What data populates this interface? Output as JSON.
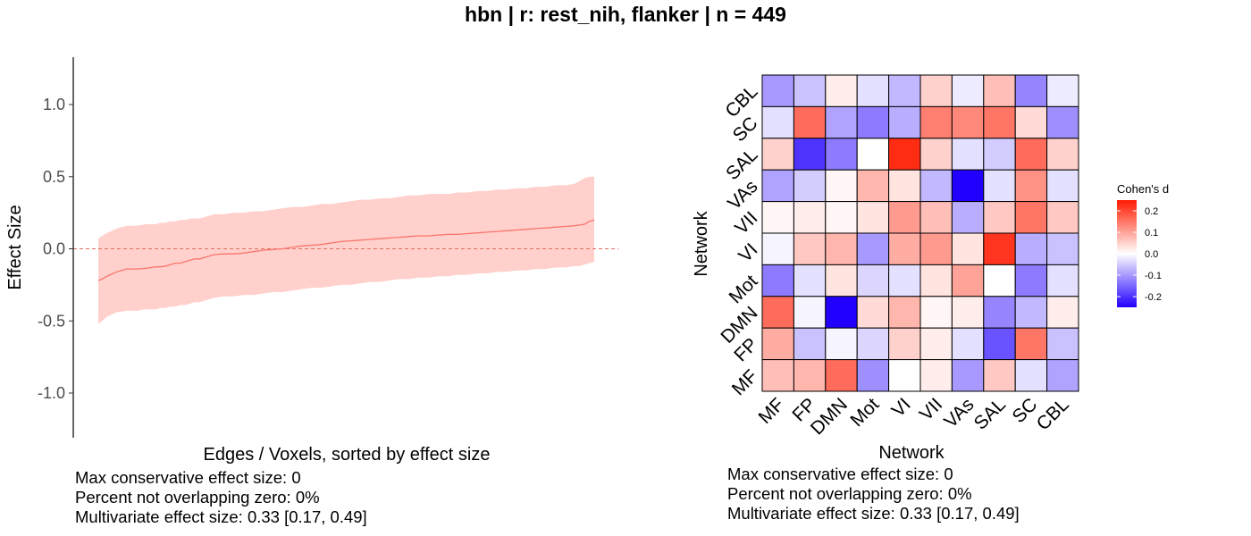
{
  "title": "hbn | r: rest_nih, flanker | n = 449",
  "chart_data": [
    {
      "type": "area",
      "title": "",
      "xlabel": "Edges / Voxels, sorted by effect size",
      "ylabel": "Effect Size",
      "ylim": [
        -1.3,
        1.3
      ],
      "yticks": [
        "1.0",
        "0.5",
        "0.0",
        "-0.5",
        "-1.0"
      ],
      "ytick_values": [
        1.0,
        0.5,
        0.0,
        -0.5,
        -1.0
      ],
      "reference_line": 0,
      "grid": false,
      "series": [
        {
          "x": [
            1,
            5,
            10,
            20,
            30,
            40,
            50,
            55,
            60,
            65,
            70,
            75,
            80,
            85,
            90,
            95,
            100,
            105,
            110,
            120,
            130,
            140,
            150,
            160,
            170,
            180,
            190,
            200,
            210,
            220,
            230,
            240,
            250,
            260,
            270,
            280,
            290,
            300,
            310,
            320,
            330,
            340,
            350,
            360,
            370,
            380,
            390,
            400,
            410,
            420,
            430,
            440,
            450,
            460,
            470,
            480,
            490,
            495,
            500,
            505,
            510
          ],
          "y": [
            -0.22,
            -0.21,
            -0.19,
            -0.16,
            -0.14,
            -0.14,
            -0.135,
            -0.13,
            -0.125,
            -0.125,
            -0.12,
            -0.11,
            -0.1,
            -0.1,
            -0.09,
            -0.08,
            -0.07,
            -0.07,
            -0.06,
            -0.04,
            -0.035,
            -0.035,
            -0.03,
            -0.02,
            -0.01,
            -0.005,
            0.0,
            0.01,
            0.02,
            0.025,
            0.03,
            0.04,
            0.05,
            0.055,
            0.06,
            0.065,
            0.07,
            0.075,
            0.08,
            0.085,
            0.09,
            0.09,
            0.095,
            0.1,
            0.1,
            0.105,
            0.11,
            0.115,
            0.12,
            0.125,
            0.13,
            0.135,
            0.14,
            0.145,
            0.15,
            0.155,
            0.16,
            0.165,
            0.17,
            0.19,
            0.2
          ],
          "lower": [
            -0.52,
            -0.5,
            -0.47,
            -0.44,
            -0.43,
            -0.43,
            -0.42,
            -0.42,
            -0.42,
            -0.41,
            -0.41,
            -0.4,
            -0.4,
            -0.39,
            -0.39,
            -0.38,
            -0.37,
            -0.37,
            -0.36,
            -0.34,
            -0.33,
            -0.33,
            -0.32,
            -0.32,
            -0.31,
            -0.3,
            -0.3,
            -0.29,
            -0.28,
            -0.27,
            -0.27,
            -0.26,
            -0.25,
            -0.25,
            -0.24,
            -0.23,
            -0.23,
            -0.22,
            -0.21,
            -0.21,
            -0.2,
            -0.2,
            -0.19,
            -0.19,
            -0.18,
            -0.18,
            -0.17,
            -0.17,
            -0.16,
            -0.16,
            -0.15,
            -0.15,
            -0.14,
            -0.14,
            -0.13,
            -0.13,
            -0.12,
            -0.12,
            -0.11,
            -0.1,
            -0.09
          ],
          "upper": [
            0.07,
            0.09,
            0.11,
            0.14,
            0.16,
            0.16,
            0.17,
            0.17,
            0.17,
            0.18,
            0.18,
            0.19,
            0.19,
            0.2,
            0.2,
            0.21,
            0.21,
            0.21,
            0.22,
            0.24,
            0.24,
            0.25,
            0.25,
            0.26,
            0.26,
            0.27,
            0.28,
            0.29,
            0.29,
            0.3,
            0.31,
            0.31,
            0.32,
            0.33,
            0.34,
            0.34,
            0.35,
            0.35,
            0.36,
            0.37,
            0.37,
            0.38,
            0.38,
            0.38,
            0.39,
            0.39,
            0.4,
            0.4,
            0.41,
            0.41,
            0.42,
            0.42,
            0.43,
            0.43,
            0.44,
            0.44,
            0.45,
            0.47,
            0.49,
            0.5,
            0.5
          ]
        }
      ],
      "colors": {
        "line": "#f8766d",
        "band": "#ffd0cc",
        "reference": "#e07060"
      },
      "caption": [
        "Max conservative effect size: 0",
        "Percent not overlapping zero: 0%",
        "Multivariate effect size: 0.33 [0.17, 0.49]"
      ]
    },
    {
      "type": "heatmap",
      "title": "",
      "xlabel": "Network",
      "ylabel": "Network",
      "x_categories": [
        "MF",
        "FP",
        "DMN",
        "Mot",
        "VI",
        "VII",
        "VAs",
        "SAL",
        "SC",
        "CBL"
      ],
      "y_categories_top_to_bottom": [
        "CBL",
        "SC",
        "SAL",
        "VAs",
        "VII",
        "VI",
        "Mot",
        "DMN",
        "FP",
        "MF"
      ],
      "values": [
        [
          -0.1,
          -0.06,
          0.02,
          -0.03,
          -0.07,
          0.05,
          -0.02,
          0.07,
          -0.12,
          -0.02
        ],
        [
          -0.03,
          0.16,
          -0.09,
          -0.13,
          -0.08,
          0.14,
          0.13,
          0.15,
          0.04,
          -0.11
        ],
        [
          0.05,
          -0.2,
          -0.13,
          0.0,
          0.23,
          0.05,
          -0.03,
          -0.05,
          0.16,
          0.05
        ],
        [
          -0.09,
          -0.05,
          0.01,
          0.08,
          0.03,
          -0.07,
          -0.25,
          -0.03,
          0.12,
          -0.03
        ],
        [
          0.01,
          0.02,
          0.01,
          0.03,
          0.11,
          0.07,
          -0.08,
          0.06,
          0.15,
          0.06
        ],
        [
          -0.01,
          0.06,
          0.08,
          -0.1,
          0.09,
          0.11,
          0.03,
          0.22,
          -0.08,
          -0.06
        ],
        [
          -0.13,
          -0.03,
          0.03,
          -0.04,
          -0.03,
          0.03,
          0.1,
          0.0,
          -0.13,
          -0.03
        ],
        [
          0.16,
          -0.01,
          -0.26,
          0.04,
          0.08,
          0.01,
          0.02,
          -0.12,
          -0.07,
          0.02
        ],
        [
          0.09,
          -0.06,
          -0.01,
          -0.04,
          0.05,
          0.02,
          -0.03,
          -0.17,
          0.15,
          -0.06
        ],
        [
          0.07,
          0.08,
          0.16,
          -0.11,
          0.0,
          0.02,
          -0.1,
          0.06,
          -0.03,
          -0.09
        ]
      ],
      "legend": {
        "title": "Cohen's d",
        "ticks": [
          "0.2",
          "0.1",
          "0.0",
          "-0.1",
          "-0.2"
        ],
        "tick_values": [
          0.2,
          0.1,
          0.0,
          -0.1,
          -0.2
        ],
        "range": [
          -0.25,
          0.25
        ],
        "placement": "right"
      },
      "colors": {
        "low": "#2200ff",
        "mid": "#ffffff",
        "high": "#ff1a00"
      },
      "caption": [
        "Max conservative effect size: 0",
        "Percent not overlapping zero: 0%",
        "Multivariate effect size: 0.33 [0.17, 0.49]"
      ]
    }
  ]
}
